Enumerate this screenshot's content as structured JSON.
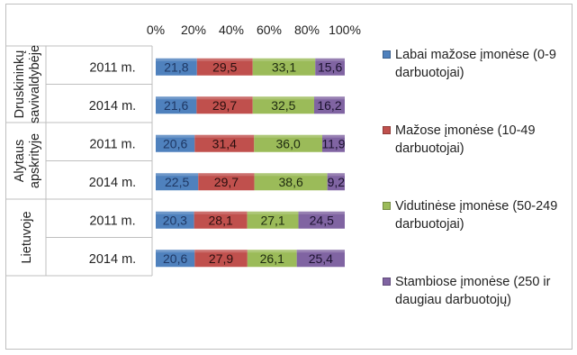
{
  "chart_data": {
    "type": "bar",
    "orientation": "horizontal",
    "stacked": "percent",
    "title": "",
    "x_ticks": [
      "0%",
      "20%",
      "40%",
      "60%",
      "80%",
      "100%"
    ],
    "xlim": [
      0,
      100
    ],
    "grid": false,
    "legend_position": "right",
    "groups": [
      {
        "label": "Druskininkų savivaldybėje",
        "line1": "Druskininkų",
        "line2": "savivaldybėje"
      },
      {
        "label": "Alytaus apskrityje",
        "line1": "Alytaus",
        "line2": "apskrityje"
      },
      {
        "label": "Lietuvoje",
        "line1": "Lietuvoje",
        "line2": ""
      }
    ],
    "rows": [
      {
        "group": 0,
        "year": "2011 m.",
        "values": [
          "21,8",
          "29,5",
          "33,1",
          "15,6"
        ]
      },
      {
        "group": 0,
        "year": "2014 m.",
        "values": [
          "21,6",
          "29,7",
          "32,5",
          "16,2"
        ]
      },
      {
        "group": 1,
        "year": "2011 m.",
        "values": [
          "20,6",
          "31,4",
          "36,0",
          "11,9"
        ]
      },
      {
        "group": 1,
        "year": "2014 m.",
        "values": [
          "22,5",
          "29,7",
          "38,6",
          "9,2"
        ]
      },
      {
        "group": 2,
        "year": "2011 m.",
        "values": [
          "20,3",
          "28,1",
          "27,1",
          "24,5"
        ]
      },
      {
        "group": 2,
        "year": "2014 m.",
        "values": [
          "20,6",
          "27,9",
          "26,1",
          "25,4"
        ]
      }
    ],
    "series": [
      {
        "name": "Labai mažose įmonėse (0-9 darbuotojai)",
        "color": "#4f81bd",
        "label_color": "#1f3864"
      },
      {
        "name": "Mažose įmonėse (10-49 darbuotojai)",
        "color": "#c0504d",
        "label_color": "#2a0f0f"
      },
      {
        "name": "Vidutinėse įmonėse (50-249 darbuotojai)",
        "color": "#9bbb59",
        "label_color": "#1e2a10"
      },
      {
        "name": "Stambiose įmonėse (250 ir daugiau darbuotojų)",
        "color": "#8064a2",
        "label_color": "#1c1230"
      }
    ]
  }
}
